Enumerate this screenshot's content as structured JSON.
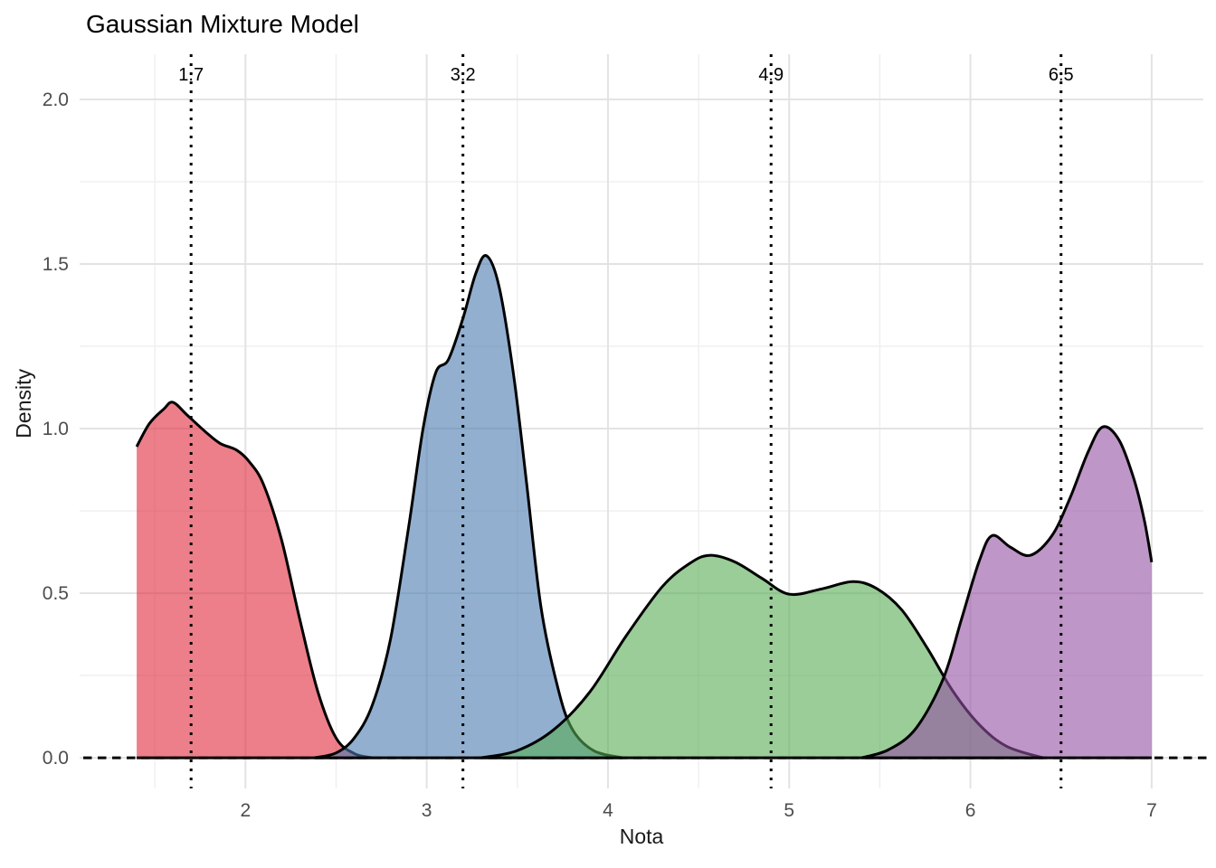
{
  "header": {
    "title": "Gaussian Mixture Model"
  },
  "chart_data": {
    "type": "area",
    "subtype": "density",
    "title": "Gaussian Mixture Model",
    "xlabel": "Nota",
    "ylabel": "Density",
    "xlim": [
      1.085,
      7.285
    ],
    "ylim": [
      -0.093,
      2.137
    ],
    "grid": true,
    "legend": "none",
    "background": "#ffffff",
    "grid_major_color": "#E3E3E3",
    "grid_minor_color": "#EFEFEF",
    "tick_label_color": "#4D4D4D",
    "x_ticks": [
      2,
      3,
      4,
      5,
      6,
      7
    ],
    "x_tick_labels": [
      "2",
      "3",
      "4",
      "5",
      "6",
      "7"
    ],
    "x_minor": [
      1.5,
      2.5,
      3.5,
      4.5,
      5.5,
      6.5
    ],
    "y_ticks": [
      0,
      0.5,
      1,
      1.5,
      2
    ],
    "y_tick_labels": [
      "0.0",
      "0.5",
      "1.0",
      "1.5",
      "2.0"
    ],
    "y_minor": [
      0.25,
      0.75,
      1.25,
      1.75
    ],
    "zero_line": {
      "y": 0,
      "style": "dashed",
      "color": "#000000"
    },
    "component_means": [
      {
        "value": 1.7,
        "label": "1.7"
      },
      {
        "value": 3.2,
        "label": "3.2"
      },
      {
        "value": 4.9,
        "label": "4.9"
      },
      {
        "value": 6.5,
        "label": "6.5"
      }
    ],
    "mean_line_style": "dotted",
    "series": [
      {
        "name": "component-1-red",
        "color": "#E0293A",
        "fill_opacity": 0.6,
        "stroke": "#000000",
        "points": [
          [
            1.4,
            0.945
          ],
          [
            1.47,
            1.015
          ],
          [
            1.55,
            1.06
          ],
          [
            1.6,
            1.08
          ],
          [
            1.68,
            1.04
          ],
          [
            1.78,
            0.99
          ],
          [
            1.86,
            0.955
          ],
          [
            1.95,
            0.935
          ],
          [
            2.02,
            0.9
          ],
          [
            2.1,
            0.83
          ],
          [
            2.2,
            0.66
          ],
          [
            2.3,
            0.42
          ],
          [
            2.4,
            0.2
          ],
          [
            2.5,
            0.06
          ],
          [
            2.6,
            0.013
          ],
          [
            2.7,
            0.0
          ]
        ]
      },
      {
        "name": "component-2-blue",
        "color": "#4979AF",
        "fill_opacity": 0.6,
        "stroke": "#000000",
        "points": [
          [
            2.38,
            0.0
          ],
          [
            2.5,
            0.015
          ],
          [
            2.6,
            0.06
          ],
          [
            2.7,
            0.16
          ],
          [
            2.8,
            0.36
          ],
          [
            2.9,
            0.7
          ],
          [
            2.98,
            1.0
          ],
          [
            3.05,
            1.17
          ],
          [
            3.12,
            1.21
          ],
          [
            3.2,
            1.335
          ],
          [
            3.27,
            1.47
          ],
          [
            3.33,
            1.525
          ],
          [
            3.4,
            1.43
          ],
          [
            3.48,
            1.16
          ],
          [
            3.55,
            0.84
          ],
          [
            3.63,
            0.46
          ],
          [
            3.72,
            0.22
          ],
          [
            3.8,
            0.09
          ],
          [
            3.92,
            0.022
          ],
          [
            4.08,
            0.0
          ]
        ]
      },
      {
        "name": "component-3-green",
        "color": "#57AC53",
        "fill_opacity": 0.6,
        "stroke": "#000000",
        "points": [
          [
            3.3,
            0.0
          ],
          [
            3.5,
            0.022
          ],
          [
            3.7,
            0.085
          ],
          [
            3.9,
            0.2
          ],
          [
            4.1,
            0.37
          ],
          [
            4.3,
            0.52
          ],
          [
            4.45,
            0.59
          ],
          [
            4.56,
            0.615
          ],
          [
            4.7,
            0.595
          ],
          [
            4.85,
            0.545
          ],
          [
            5.0,
            0.497
          ],
          [
            5.18,
            0.513
          ],
          [
            5.35,
            0.535
          ],
          [
            5.48,
            0.515
          ],
          [
            5.62,
            0.45
          ],
          [
            5.76,
            0.335
          ],
          [
            5.9,
            0.205
          ],
          [
            6.05,
            0.1
          ],
          [
            6.2,
            0.035
          ],
          [
            6.4,
            0.0
          ]
        ]
      },
      {
        "name": "component-4-purple",
        "color": "#9450A3",
        "fill_opacity": 0.6,
        "stroke": "#000000",
        "points": [
          [
            5.4,
            0.0
          ],
          [
            5.55,
            0.025
          ],
          [
            5.7,
            0.09
          ],
          [
            5.85,
            0.24
          ],
          [
            5.95,
            0.42
          ],
          [
            6.05,
            0.6
          ],
          [
            6.12,
            0.675
          ],
          [
            6.22,
            0.64
          ],
          [
            6.33,
            0.615
          ],
          [
            6.45,
            0.675
          ],
          [
            6.55,
            0.79
          ],
          [
            6.65,
            0.93
          ],
          [
            6.73,
            1.005
          ],
          [
            6.82,
            0.965
          ],
          [
            6.9,
            0.85
          ],
          [
            6.96,
            0.72
          ],
          [
            7.0,
            0.594
          ]
        ]
      }
    ]
  }
}
